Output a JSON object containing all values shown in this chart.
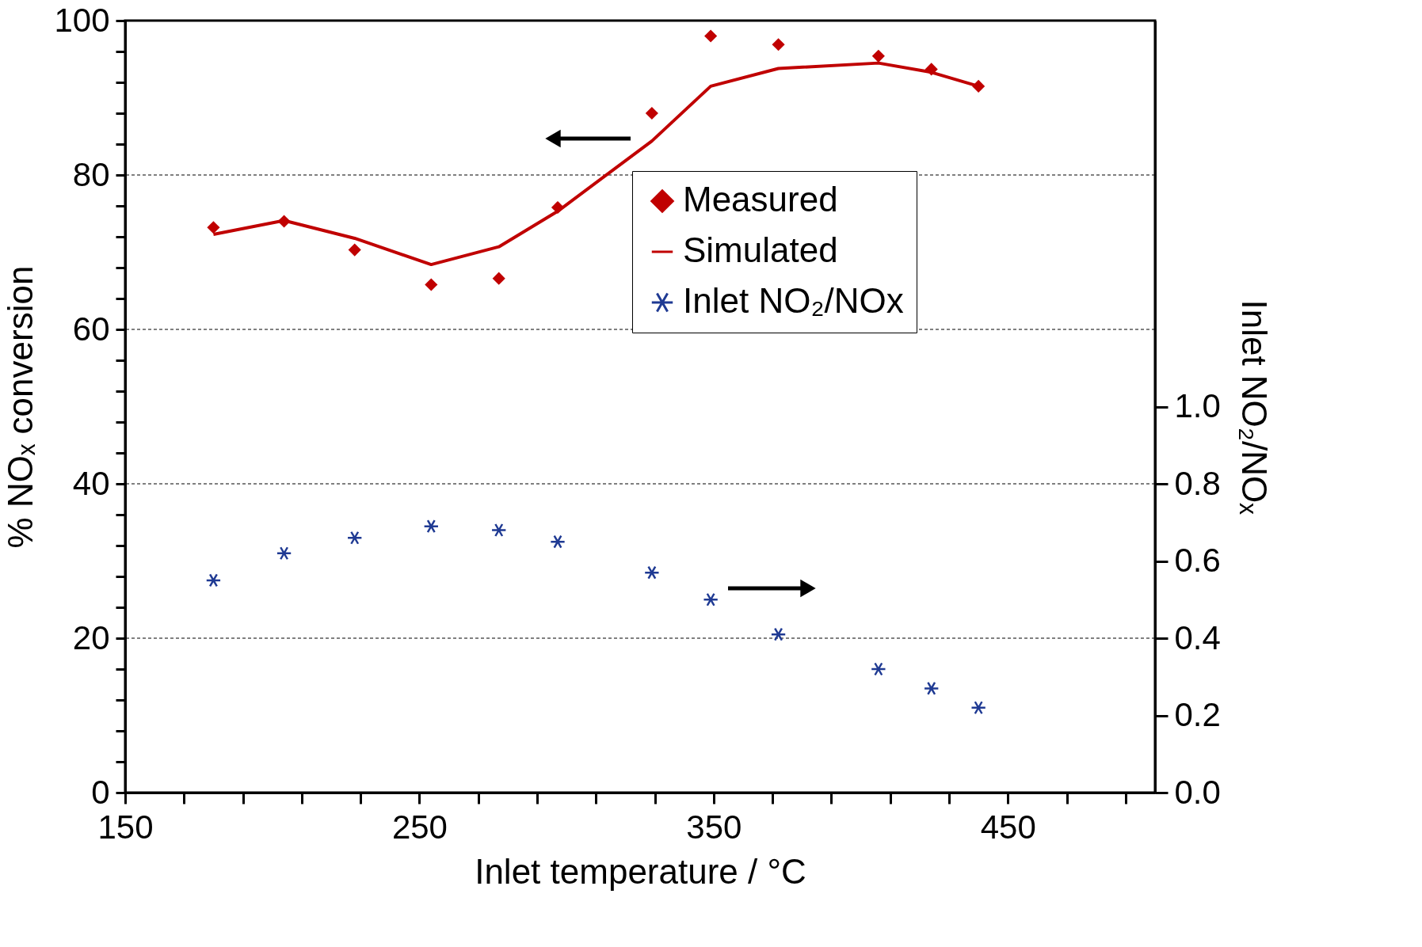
{
  "chart_data": {
    "type": "scatter",
    "xlabel": "Inlet temperature / °C",
    "ylabel": "% NOₓ conversion",
    "y2label": "Inlet NO₂/NOₓ",
    "x": [
      180,
      204,
      228,
      254,
      277,
      297,
      329,
      349,
      372,
      406,
      424,
      440
    ],
    "series": [
      {
        "name": "Measured",
        "marker": "diamond",
        "color": "#c00000",
        "values": [
          73.2,
          74.0,
          70.3,
          65.8,
          66.6,
          75.8,
          88.0,
          98.0,
          96.9,
          95.4,
          93.7,
          91.5
        ]
      },
      {
        "name": "Simulated",
        "type": "line",
        "marker": "none",
        "line_style": "solid",
        "color": "#c00000",
        "values": [
          72.3,
          74.1,
          71.8,
          68.4,
          70.7,
          75.3,
          84.4,
          91.5,
          93.8,
          94.5,
          93.3,
          91.5
        ]
      },
      {
        "name": "Inlet NO₂/NOx",
        "marker": "cross",
        "axis": "y2",
        "color": "#1f3a93",
        "values": [
          0.55,
          0.62,
          0.66,
          0.69,
          0.68,
          0.65,
          0.57,
          0.5,
          0.41,
          0.32,
          0.27,
          0.22
        ]
      }
    ],
    "xlim": [
      150,
      500
    ],
    "xticks": [
      150,
      {
        "value": 170,
        "label": null
      },
      {
        "value": 190,
        "label": null
      },
      {
        "value": 210,
        "label": null
      },
      {
        "value": 230,
        "label": null
      },
      250,
      {
        "value": 270,
        "label": null
      },
      {
        "value": 290,
        "label": null
      },
      {
        "value": 310,
        "label": null
      },
      {
        "value": 330,
        "label": null
      },
      350,
      {
        "value": 370,
        "label": null
      },
      {
        "value": 390,
        "label": null
      },
      {
        "value": 410,
        "label": null
      },
      {
        "value": 430,
        "label": null
      },
      450,
      {
        "value": 470,
        "label": null
      },
      {
        "value": 490,
        "label": null
      }
    ],
    "ylim": [
      0,
      100
    ],
    "yticks": [
      0,
      {
        "value": 4,
        "label": null
      },
      {
        "value": 8,
        "label": null
      },
      {
        "value": 12,
        "label": null
      },
      {
        "value": 16,
        "label": null
      },
      20,
      {
        "value": 24,
        "label": null
      },
      {
        "value": 28,
        "label": null
      },
      {
        "value": 32,
        "label": null
      },
      {
        "value": 36,
        "label": null
      },
      40,
      {
        "value": 44,
        "label": null
      },
      {
        "value": 48,
        "label": null
      },
      {
        "value": 52,
        "label": null
      },
      {
        "value": 56,
        "label": null
      },
      60,
      {
        "value": 64,
        "label": null
      },
      {
        "value": 68,
        "label": null
      },
      {
        "value": 72,
        "label": null
      },
      {
        "value": 76,
        "label": null
      },
      80,
      {
        "value": 84,
        "label": null
      },
      {
        "value": 88,
        "label": null
      },
      {
        "value": 92,
        "label": null
      },
      {
        "value": 96,
        "label": null
      },
      100
    ],
    "y2lim": [
      0,
      2
    ],
    "y2ticks": [
      {
        "value": 0,
        "label": "0.0"
      },
      {
        "value": 0.2,
        "label": "0.2"
      },
      {
        "value": 0.4,
        "label": "0.4"
      },
      {
        "value": 0.6,
        "label": "0.6"
      },
      {
        "value": 0.8,
        "label": "0.8"
      },
      {
        "value": 1,
        "label": "1.0"
      }
    ],
    "grid": "y",
    "legend": "top right"
  }
}
